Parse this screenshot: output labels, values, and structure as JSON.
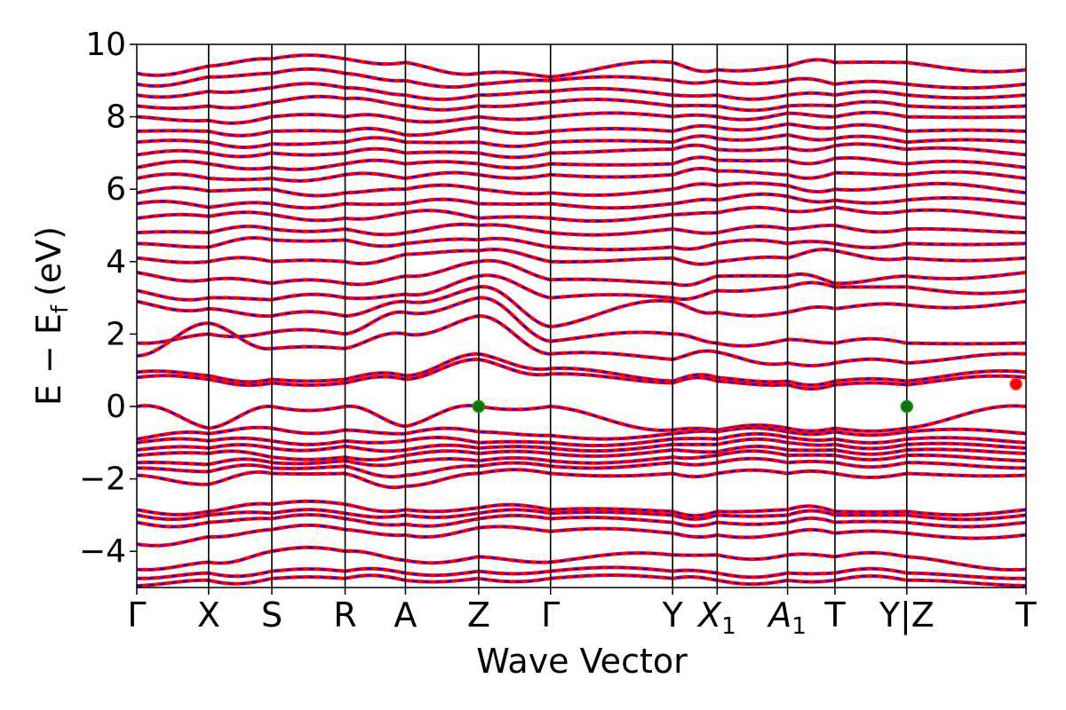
{
  "chart_data": {
    "type": "line",
    "title": "",
    "xlabel": "Wave Vector",
    "ylabel_main": "E − E",
    "ylabel_sub": "f",
    "ylabel_unit": "(eV)",
    "ylim": [
      -5,
      10
    ],
    "yticks": [
      10,
      8,
      6,
      4,
      2,
      0,
      -2,
      -4
    ],
    "ytick_labels": [
      "10",
      "8",
      "6",
      "4",
      "2",
      "0",
      "−2",
      "−4"
    ],
    "grid": false,
    "legend": "none",
    "kpath": [
      {
        "label": "Γ",
        "sub": "",
        "x": 0.0
      },
      {
        "label": "X",
        "sub": "",
        "x": 0.5
      },
      {
        "label": "S",
        "sub": "",
        "x": 0.94
      },
      {
        "label": "R",
        "sub": "",
        "x": 1.45
      },
      {
        "label": "A",
        "sub": "",
        "x": 1.87
      },
      {
        "label": "Z",
        "sub": "",
        "x": 2.38
      },
      {
        "label": "Γ",
        "sub": "",
        "x": 2.88
      },
      {
        "label": "Y",
        "sub": "",
        "x": 3.73
      },
      {
        "label": "X",
        "sub": "1",
        "x": 4.04
      },
      {
        "label": "A",
        "sub": "1",
        "x": 4.53
      },
      {
        "label": "T",
        "sub": "",
        "x": 4.86
      },
      {
        "label": "Y|Z",
        "sub": "",
        "x": 5.36
      },
      {
        "label": "T",
        "sub": "",
        "x": 6.19
      }
    ],
    "xlim": [
      0,
      6.19
    ],
    "series": [
      {
        "color": "#ff0000",
        "style": "solid"
      },
      {
        "color": "#0000ff",
        "style": "dashed"
      }
    ],
    "bands_below_ef": [
      {
        "levels": [
          0.0,
          -0.6,
          0.0,
          0.0,
          -0.55,
          0.0,
          0.0,
          -0.65,
          -0.65,
          -0.6,
          -0.6,
          -0.6,
          0.0,
          -0.6
        ]
      },
      {
        "levels": [
          -0.9,
          -0.75,
          -0.6,
          -0.65,
          -0.75,
          -0.7,
          -0.8,
          -0.75,
          -0.7,
          -0.7,
          -0.7,
          -0.7,
          -0.75,
          -0.75
        ]
      },
      {
        "levels": [
          -1.0,
          -0.95,
          -0.95,
          -0.95,
          -0.95,
          -1.0,
          -1.0,
          -0.9,
          -0.9,
          -0.85,
          -0.9,
          -0.9,
          -1.0,
          -0.9
        ]
      },
      {
        "levels": [
          -1.2,
          -1.15,
          -1.15,
          -1.1,
          -1.2,
          -1.15,
          -1.15,
          -1.05,
          -1.05,
          -1.0,
          -1.05,
          -1.05,
          -1.15,
          -1.05
        ]
      },
      {
        "levels": [
          -1.35,
          -1.3,
          -1.4,
          -1.4,
          -1.35,
          -1.3,
          -1.3,
          -1.2,
          -1.25,
          -1.2,
          -1.2,
          -1.2,
          -1.3,
          -1.2
        ]
      },
      {
        "levels": [
          -1.55,
          -1.6,
          -1.55,
          -1.5,
          -1.55,
          -1.5,
          -1.5,
          -1.4,
          -1.35,
          -1.35,
          -1.35,
          -1.35,
          -1.5,
          -1.4
        ]
      },
      {
        "levels": [
          -1.7,
          -1.8,
          -1.7,
          -1.65,
          -1.9,
          -1.65,
          -1.65,
          -1.55,
          -1.55,
          -1.55,
          -1.55,
          -1.55,
          -1.7,
          -1.6
        ]
      },
      {
        "levels": [
          -1.9,
          -2.15,
          -1.85,
          -1.85,
          -2.2,
          -1.85,
          -1.85,
          -1.85,
          -1.85,
          -1.85,
          -1.85,
          -1.85,
          -1.9,
          -2.3
        ]
      },
      {
        "levels": [
          -2.85,
          -2.9,
          -2.7,
          -2.7,
          -2.85,
          -2.8,
          -2.85,
          -2.9,
          -2.9,
          -2.85,
          -2.9,
          -2.9,
          -2.85,
          -2.9
        ]
      },
      {
        "levels": [
          -3.0,
          -3.0,
          -2.95,
          -2.95,
          -3.0,
          -2.95,
          -2.95,
          -3.0,
          -3.0,
          -3.0,
          -3.0,
          -3.0,
          -3.0,
          -3.05
        ]
      },
      {
        "levels": [
          -3.2,
          -3.2,
          -3.1,
          -3.1,
          -3.25,
          -3.1,
          -3.1,
          -3.2,
          -3.2,
          -3.2,
          -3.2,
          -3.2,
          -3.2,
          -3.2
        ]
      },
      {
        "levels": [
          -3.8,
          -3.6,
          -3.4,
          -3.4,
          -3.55,
          -3.35,
          -3.45,
          -3.5,
          -3.55,
          -3.5,
          -3.5,
          -3.5,
          -3.55,
          -3.7
        ]
      },
      {
        "levels": [
          -4.5,
          -4.3,
          -4.0,
          -4.0,
          -4.25,
          -4.15,
          -4.3,
          -4.1,
          -4.1,
          -4.1,
          -4.15,
          -4.15,
          -4.5,
          -3.8
        ]
      },
      {
        "levels": [
          -4.75,
          -4.6,
          -4.55,
          -4.55,
          -4.6,
          -4.55,
          -4.55,
          -4.55,
          -4.6,
          -4.6,
          -4.6,
          -4.6,
          -4.75,
          -4.55
        ]
      },
      {
        "levels": [
          -4.95,
          -4.8,
          -4.75,
          -4.75,
          -4.8,
          -4.75,
          -4.75,
          -4.75,
          -4.8,
          -4.8,
          -4.8,
          -4.8,
          -4.95,
          -4.75
        ]
      }
    ],
    "bands_above_ef": [
      {
        "levels": [
          0.8,
          0.75,
          0.65,
          0.65,
          0.75,
          1.3,
          0.9,
          0.65,
          0.7,
          0.6,
          0.6,
          0.6,
          0.8,
          0.6
        ]
      },
      {
        "levels": [
          0.95,
          0.85,
          0.75,
          0.75,
          0.85,
          1.45,
          1.05,
          0.7,
          0.8,
          0.7,
          0.7,
          0.7,
          0.95,
          0.65
        ]
      },
      {
        "levels": [
          1.4,
          2.3,
          1.6,
          1.6,
          2.0,
          2.5,
          1.45,
          1.3,
          1.5,
          1.2,
          1.2,
          1.2,
          1.45,
          1.8
        ]
      },
      {
        "levels": [
          1.75,
          2.0,
          2.05,
          2.0,
          2.6,
          3.0,
          1.8,
          2.0,
          1.75,
          1.85,
          1.75,
          1.75,
          1.75,
          2.2
        ]
      },
      {
        "levels": [
          2.9,
          2.7,
          2.5,
          2.5,
          2.9,
          3.3,
          2.2,
          2.9,
          2.6,
          2.6,
          2.7,
          2.8,
          2.9,
          2.9
        ]
      },
      {
        "levels": [
          3.2,
          3.0,
          2.95,
          3.0,
          3.1,
          3.6,
          3.0,
          3.0,
          3.2,
          3.3,
          3.3,
          3.3,
          3.2,
          3.4
        ]
      },
      {
        "levels": [
          3.7,
          3.5,
          3.4,
          3.4,
          3.6,
          4.0,
          3.5,
          3.4,
          3.6,
          3.6,
          3.4,
          3.6,
          3.7,
          3.6
        ]
      },
      {
        "levels": [
          4.1,
          4.0,
          4.0,
          4.0,
          4.2,
          4.3,
          4.0,
          4.1,
          4.0,
          4.1,
          4.3,
          4.1,
          4.1,
          4.4
        ]
      },
      {
        "levels": [
          4.5,
          4.4,
          4.6,
          4.6,
          4.5,
          4.6,
          4.4,
          4.4,
          4.5,
          4.5,
          4.5,
          4.5,
          4.5,
          4.55
        ]
      },
      {
        "levels": [
          4.8,
          4.8,
          4.9,
          4.9,
          4.8,
          5.0,
          4.8,
          4.9,
          4.8,
          4.9,
          5.0,
          4.9,
          4.8,
          5.1
        ]
      },
      {
        "levels": [
          5.2,
          5.25,
          5.3,
          5.2,
          5.35,
          5.2,
          5.2,
          5.3,
          5.35,
          5.4,
          5.5,
          5.4,
          5.2,
          5.5
        ]
      },
      {
        "levels": [
          5.6,
          5.5,
          5.6,
          5.6,
          5.6,
          5.6,
          5.6,
          5.6,
          5.7,
          5.8,
          5.7,
          5.7,
          5.6,
          5.7
        ]
      },
      {
        "levels": [
          5.9,
          5.95,
          6.0,
          5.9,
          6.0,
          6.0,
          5.9,
          6.0,
          6.1,
          6.1,
          6.0,
          6.1,
          5.9,
          6.1
        ]
      },
      {
        "levels": [
          6.3,
          6.3,
          6.3,
          6.4,
          6.3,
          6.4,
          6.4,
          6.4,
          6.5,
          6.4,
          6.45,
          6.4,
          6.3,
          6.4
        ]
      },
      {
        "levels": [
          6.6,
          6.7,
          6.6,
          6.7,
          6.7,
          6.7,
          6.7,
          6.7,
          6.8,
          6.8,
          6.85,
          6.7,
          6.6,
          6.8
        ]
      },
      {
        "levels": [
          6.95,
          7.0,
          7.0,
          7.0,
          7.0,
          7.0,
          7.0,
          7.1,
          7.1,
          7.15,
          7.2,
          7.1,
          6.95,
          7.1
        ]
      },
      {
        "levels": [
          7.3,
          7.3,
          7.25,
          7.3,
          7.3,
          7.3,
          7.3,
          7.3,
          7.4,
          7.5,
          7.4,
          7.3,
          7.3,
          7.3
        ]
      },
      {
        "levels": [
          7.6,
          7.6,
          7.6,
          7.6,
          7.5,
          7.7,
          7.6,
          7.6,
          7.7,
          7.8,
          7.7,
          7.6,
          7.6,
          7.6
        ]
      },
      {
        "levels": [
          8.0,
          7.9,
          8.0,
          8.0,
          7.9,
          8.0,
          8.0,
          8.0,
          8.0,
          8.1,
          8.0,
          8.0,
          8.0,
          8.0
        ]
      },
      {
        "levels": [
          8.3,
          8.3,
          8.4,
          8.5,
          8.3,
          8.3,
          8.4,
          8.3,
          8.3,
          8.3,
          8.3,
          8.3,
          8.3,
          8.3
        ]
      },
      {
        "levels": [
          8.6,
          8.7,
          8.8,
          8.8,
          8.6,
          8.6,
          8.7,
          8.6,
          8.6,
          8.6,
          8.6,
          8.6,
          8.6,
          8.5
        ]
      },
      {
        "levels": [
          8.9,
          9.1,
          9.2,
          9.2,
          9.0,
          8.9,
          9.0,
          9.0,
          9.0,
          9.0,
          8.9,
          8.9,
          8.9,
          9.0
        ]
      },
      {
        "levels": [
          9.2,
          9.4,
          9.6,
          9.6,
          9.5,
          9.2,
          9.1,
          9.5,
          9.3,
          9.4,
          9.5,
          9.5,
          9.3,
          9.5
        ]
      }
    ],
    "markers": [
      {
        "x": 2.38,
        "y": 0.0,
        "color": "#1a6b1a",
        "edge": "#00aa00"
      },
      {
        "x": 5.36,
        "y": 0.0,
        "color": "#1a6b1a",
        "edge": "#00aa00"
      },
      {
        "x": 6.12,
        "y": 0.62,
        "color": "#ff0000",
        "edge": "#ff4444"
      }
    ]
  }
}
